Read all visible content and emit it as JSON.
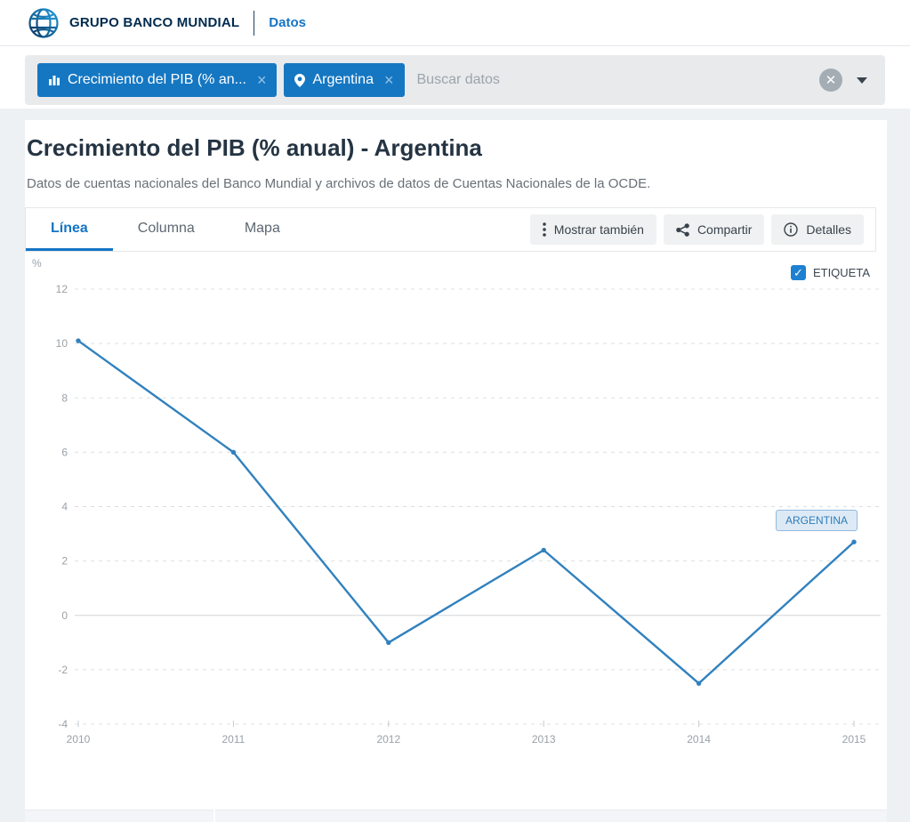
{
  "header": {
    "brand": "GRUPO BANCO MUNDIAL",
    "nav": "Datos"
  },
  "search": {
    "tags": [
      {
        "label": "Crecimiento del PIB (% an...",
        "icon": "bar-chart",
        "close": "×"
      },
      {
        "label": "Argentina",
        "icon": "location-pin",
        "close": "×"
      }
    ],
    "placeholder": "Buscar datos"
  },
  "page": {
    "title": "Crecimiento del PIB (% anual) - Argentina",
    "subtitle": "Datos de cuentas nacionales del Banco Mundial y archivos de datos de Cuentas Nacionales de la OCDE."
  },
  "toolbar": {
    "tabs": [
      {
        "label": "Línea",
        "active": true
      },
      {
        "label": "Columna",
        "active": false
      },
      {
        "label": "Mapa",
        "active": false
      }
    ],
    "buttons": [
      {
        "label": "Mostrar también",
        "icon": "kebab-menu"
      },
      {
        "label": "Compartir",
        "icon": "share"
      },
      {
        "label": "Detalles",
        "icon": "info"
      }
    ]
  },
  "chart": {
    "label_checkbox": {
      "label": "ETIQUETA",
      "checked": true,
      "check_glyph": "✓"
    },
    "series_badge": "ARGENTINA"
  },
  "chart_data": {
    "type": "line",
    "title": "Crecimiento del PIB (% anual) - Argentina",
    "x": [
      2010,
      2011,
      2012,
      2013,
      2014,
      2015
    ],
    "series": [
      {
        "name": "Argentina",
        "values": [
          10.1,
          6.0,
          -1.0,
          2.4,
          -2.5,
          2.7
        ]
      }
    ],
    "ylabel": "%",
    "ylim": [
      -4,
      12
    ],
    "yticks": [
      12,
      10,
      8,
      6,
      4,
      2,
      0,
      -2,
      -4
    ],
    "grid": true,
    "legend_position": "top-right",
    "line_color": "#3181be"
  },
  "colors": {
    "accent": "#1577c2",
    "brand_navy": "#002a4e",
    "line": "#3181be",
    "grid": "#dcdfe2",
    "zero_line": "#d2d6d9",
    "badge_bg": "#ddeaf6",
    "badge_border": "#8fb9de"
  }
}
